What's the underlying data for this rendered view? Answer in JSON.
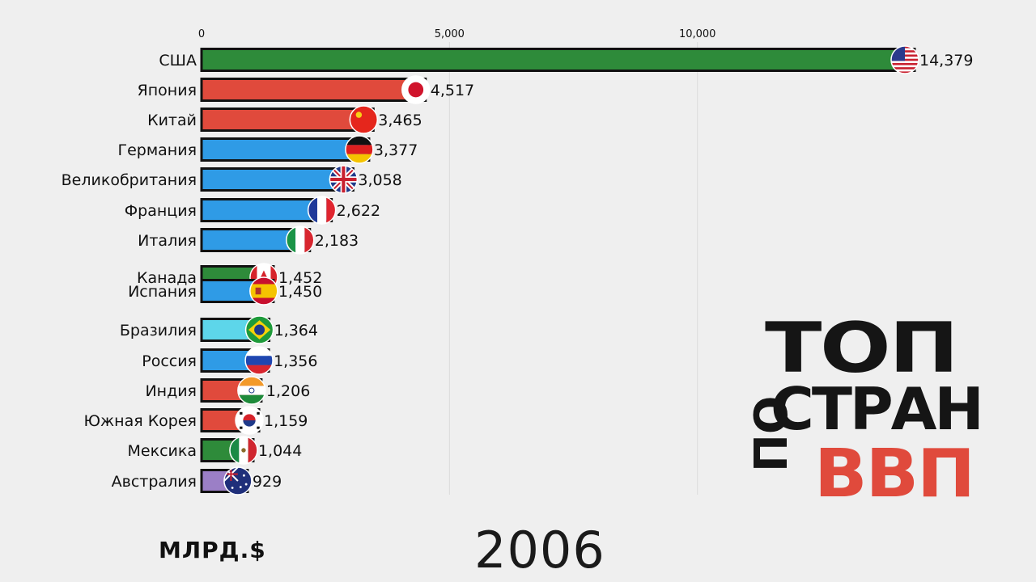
{
  "chart_data": {
    "type": "bar",
    "orientation": "horizontal",
    "categories": [
      "США",
      "Япония",
      "Китай",
      "Германия",
      "Великобритания",
      "Франция",
      "Италия",
      "Канада",
      "Испания",
      "Бразилия",
      "Россия",
      "Индия",
      "Южная Корея",
      "Мексика",
      "Австралия"
    ],
    "values": [
      14379,
      4517,
      3465,
      3377,
      3058,
      2622,
      2183,
      1452,
      1450,
      1364,
      1356,
      1206,
      1159,
      1044,
      929
    ],
    "value_labels": [
      "14,379",
      "4,517",
      "3,465",
      "3,377",
      "3,058",
      "2,622",
      "2,183",
      "1,452",
      "1,450",
      "1,364",
      "1,356",
      "1,206",
      "1,159",
      "1,044",
      "929"
    ],
    "bar_colors": [
      "#2e8b3a",
      "#e04a3c",
      "#e04a3c",
      "#2f9be6",
      "#2f9be6",
      "#2f9be6",
      "#2f9be6",
      "#2e8b3a",
      "#2f9be6",
      "#5dd6ea",
      "#2f9be6",
      "#e04a3c",
      "#e04a3c",
      "#2e8b3a",
      "#9b7fc6"
    ],
    "flag_icons": [
      "us-flag-icon",
      "japan-flag-icon",
      "china-flag-icon",
      "germany-flag-icon",
      "uk-flag-icon",
      "france-flag-icon",
      "italy-flag-icon",
      "canada-flag-icon",
      "spain-flag-icon",
      "brazil-flag-icon",
      "russia-flag-icon",
      "india-flag-icon",
      "south-korea-flag-icon",
      "mexico-flag-icon",
      "australia-flag-icon"
    ],
    "x_ticks": [
      0,
      5000,
      10000
    ],
    "x_tick_labels": [
      "0",
      "5,000",
      "10,000"
    ],
    "xlim": [
      0,
      14379
    ],
    "grid": true,
    "unit": "МЛРД.$",
    "year": "2006"
  },
  "logo": {
    "line1": "ТОП",
    "line2": "СТРАН",
    "line3_prefix": "ПО",
    "line3_main": "ВВП"
  }
}
